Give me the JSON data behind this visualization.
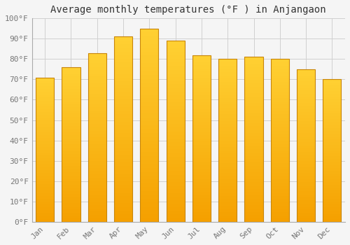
{
  "title": "Average monthly temperatures (°F ) in Anjangaon",
  "months": [
    "Jan",
    "Feb",
    "Mar",
    "Apr",
    "May",
    "Jun",
    "Jul",
    "Aug",
    "Sep",
    "Oct",
    "Nov",
    "Dec"
  ],
  "values": [
    71,
    76,
    83,
    91,
    95,
    89,
    82,
    80,
    81,
    80,
    75,
    70
  ],
  "bar_color_top": "#FFC020",
  "bar_color_bottom": "#F5A000",
  "bar_edge_color": "#C8860A",
  "ylim": [
    0,
    100
  ],
  "yticks": [
    0,
    10,
    20,
    30,
    40,
    50,
    60,
    70,
    80,
    90,
    100
  ],
  "ytick_labels": [
    "0°F",
    "10°F",
    "20°F",
    "30°F",
    "40°F",
    "50°F",
    "60°F",
    "70°F",
    "80°F",
    "90°F",
    "100°F"
  ],
  "background_color": "#F5F5F5",
  "grid_color": "#D0D0D0",
  "title_fontsize": 10,
  "tick_fontsize": 8,
  "bar_width": 0.7,
  "figsize": [
    5.0,
    3.5
  ],
  "dpi": 100
}
